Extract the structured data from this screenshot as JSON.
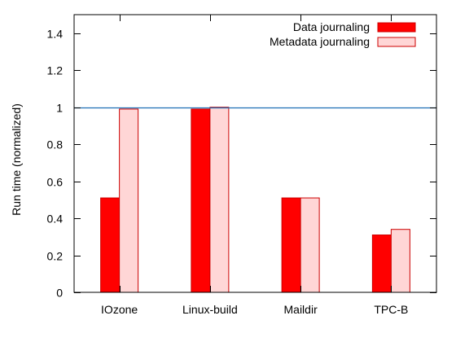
{
  "chart_data": {
    "type": "bar",
    "title": "",
    "xlabel": "",
    "ylabel": "Run time (normalized)",
    "ylim": [
      0,
      1.5
    ],
    "yticks": [
      0,
      0.2,
      0.4,
      0.6,
      0.8,
      1,
      1.2,
      1.4
    ],
    "categories": [
      "IOzone",
      "Linux-build",
      "Maildir",
      "TPC-B"
    ],
    "series": [
      {
        "name": "Data journaling",
        "values": [
          0.51,
          0.99,
          0.51,
          0.31
        ],
        "fill": "#ff0000",
        "stroke": "#cc0000"
      },
      {
        "name": "Metadata journaling",
        "values": [
          0.99,
          1.0,
          0.51,
          0.34
        ],
        "fill": "#ffd6d6",
        "stroke": "#cc0000"
      }
    ],
    "reference_line": {
      "y": 1,
      "color": "#1f6fb5"
    },
    "legend_position": "top-right",
    "grid": false
  }
}
